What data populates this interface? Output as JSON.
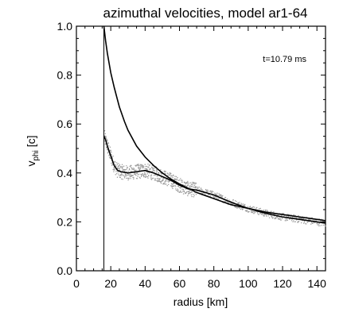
{
  "chart_data": {
    "type": "line",
    "title": "azimuthal velocities, model ar1-64",
    "xlabel": "radius [km]",
    "ylabel_main": "v",
    "ylabel_sub": "phi",
    "ylabel_unit": " [c]",
    "annotation": "t=10.79 ms",
    "xlim": [
      0,
      145
    ],
    "ylim": [
      0,
      1.0
    ],
    "x_ticks": [
      "0",
      "20",
      "40",
      "60",
      "80",
      "100",
      "120",
      "140"
    ],
    "x_tick_values": [
      0,
      20,
      40,
      60,
      80,
      100,
      120,
      140
    ],
    "y_ticks": [
      "0.0",
      "0.2",
      "0.4",
      "0.6",
      "0.8",
      "1.0"
    ],
    "y_tick_values": [
      0,
      0.2,
      0.4,
      0.6,
      0.8,
      1.0
    ],
    "vertical_line_x": 16,
    "series": [
      {
        "style": "line",
        "x": [
          16,
          17,
          18,
          20,
          22,
          25,
          28,
          30,
          35,
          40,
          45,
          50,
          55,
          60,
          70,
          80,
          90,
          100,
          110,
          120,
          130,
          140,
          145
        ],
        "y": [
          1.0,
          0.94,
          0.89,
          0.81,
          0.75,
          0.67,
          0.61,
          0.575,
          0.51,
          0.465,
          0.43,
          0.4,
          0.375,
          0.355,
          0.32,
          0.295,
          0.27,
          0.255,
          0.24,
          0.23,
          0.22,
          0.21,
          0.205
        ]
      },
      {
        "style": "line",
        "x": [
          16,
          17,
          18,
          20,
          22,
          24,
          26,
          30,
          35,
          40,
          45,
          50,
          55,
          60,
          65,
          70,
          80,
          90,
          100,
          110,
          120,
          130,
          140,
          145
        ],
        "y": [
          0.55,
          0.535,
          0.51,
          0.47,
          0.43,
          0.41,
          0.405,
          0.4,
          0.405,
          0.41,
          0.4,
          0.385,
          0.37,
          0.35,
          0.335,
          0.33,
          0.31,
          0.28,
          0.255,
          0.235,
          0.22,
          0.21,
          0.2,
          0.195
        ]
      }
    ]
  }
}
